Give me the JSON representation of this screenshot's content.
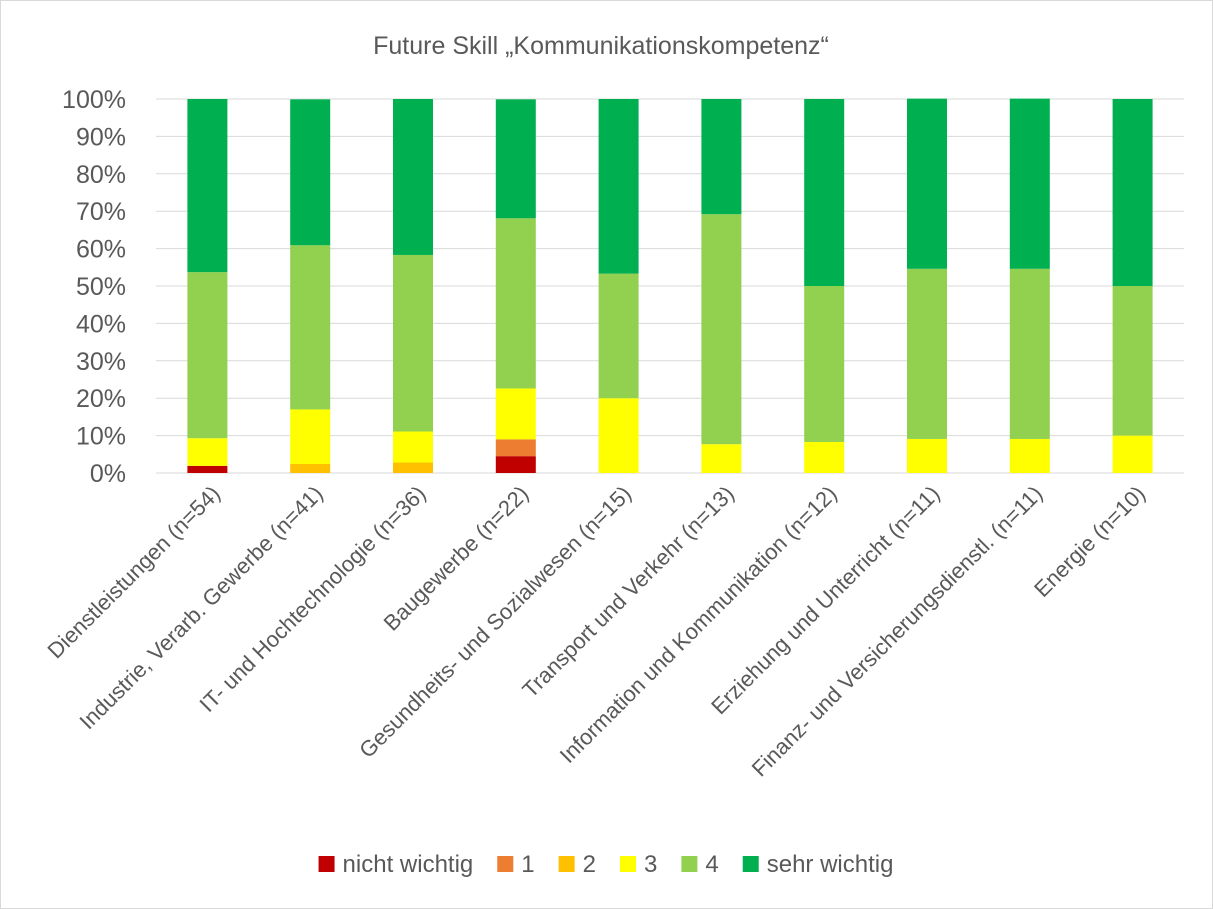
{
  "chart_data": {
    "type": "bar",
    "stacked": true,
    "percent": true,
    "title": "Future Skill „Kommunikationskompetenz“",
    "xlabel": "",
    "ylabel": "",
    "ylim": [
      0,
      100
    ],
    "yticks": [
      "0%",
      "10%",
      "20%",
      "30%",
      "40%",
      "50%",
      "60%",
      "70%",
      "80%",
      "90%",
      "100%"
    ],
    "grid": true,
    "legend_position": "bottom",
    "categories": [
      "Dienstleistungen (n=54)",
      "Industrie, Verarb. Gewerbe (n=41)",
      "IT- und Hochtechnologie (n=36)",
      "Baugewerbe (n=22)",
      "Gesundheits- und Sozialwesen (n=15)",
      "Transport und Verkehr (n=13)",
      "Information und Kommunikation (n=12)",
      "Erziehung und Unterricht (n=11)",
      "Finanz- und Versicherungsdienstl. (n=11)",
      "Energie (n=10)"
    ],
    "series": [
      {
        "name": "nicht wichtig",
        "color": "#C00000",
        "values": [
          1.9,
          0,
          0,
          4.5,
          0,
          0,
          0,
          0,
          0,
          0
        ]
      },
      {
        "name": "1",
        "color": "#ED7D31",
        "values": [
          0,
          0,
          0,
          4.5,
          0,
          0,
          0,
          0,
          0,
          0
        ]
      },
      {
        "name": "2",
        "color": "#FFC000",
        "values": [
          0,
          2.4,
          2.8,
          0,
          0,
          0,
          0,
          0,
          0,
          0
        ]
      },
      {
        "name": "3",
        "color": "#FFFF00",
        "values": [
          7.4,
          14.6,
          8.3,
          13.6,
          20.0,
          7.7,
          8.3,
          9.1,
          9.1,
          10.0
        ]
      },
      {
        "name": "4",
        "color": "#92D050",
        "values": [
          44.4,
          43.9,
          47.2,
          45.5,
          33.3,
          61.5,
          41.7,
          45.5,
          45.5,
          40.0
        ]
      },
      {
        "name": "sehr wichtig",
        "color": "#00B050",
        "values": [
          46.3,
          39.0,
          41.7,
          31.8,
          46.7,
          30.8,
          50.0,
          45.5,
          45.5,
          50.0
        ]
      }
    ]
  }
}
